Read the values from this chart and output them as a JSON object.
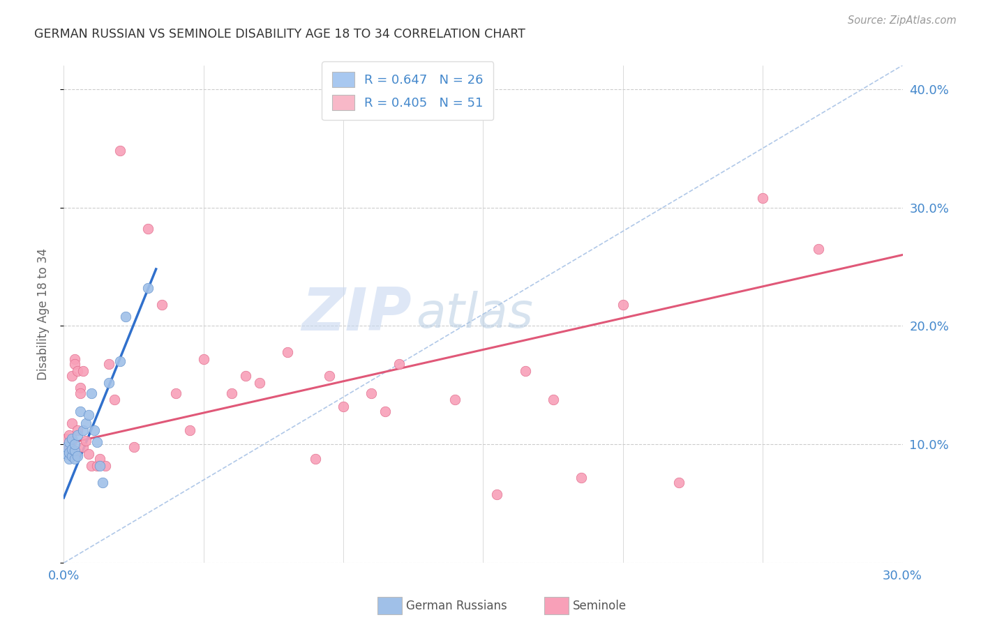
{
  "title": "GERMAN RUSSIAN VS SEMINOLE DISABILITY AGE 18 TO 34 CORRELATION CHART",
  "source": "Source: ZipAtlas.com",
  "ylabel_text": "Disability Age 18 to 34",
  "xlim": [
    0.0,
    0.3
  ],
  "ylim": [
    0.0,
    0.42
  ],
  "xticks": [
    0.0,
    0.05,
    0.1,
    0.15,
    0.2,
    0.25,
    0.3
  ],
  "yticks": [
    0.0,
    0.1,
    0.2,
    0.3,
    0.4
  ],
  "watermark_zip": "ZIP",
  "watermark_atlas": "atlas",
  "legend_entries": [
    {
      "label_r": "R = 0.647",
      "label_n": "N = 26",
      "color": "#a8c8f0"
    },
    {
      "label_r": "R = 0.405",
      "label_n": "N = 51",
      "color": "#f8b8c8"
    }
  ],
  "german_russians": {
    "x": [
      0.001,
      0.001,
      0.002,
      0.002,
      0.002,
      0.003,
      0.003,
      0.003,
      0.004,
      0.004,
      0.004,
      0.005,
      0.005,
      0.006,
      0.007,
      0.008,
      0.009,
      0.01,
      0.011,
      0.012,
      0.013,
      0.014,
      0.016,
      0.02,
      0.022,
      0.03
    ],
    "y": [
      0.092,
      0.098,
      0.088,
      0.093,
      0.102,
      0.09,
      0.096,
      0.105,
      0.088,
      0.095,
      0.1,
      0.09,
      0.108,
      0.128,
      0.112,
      0.118,
      0.125,
      0.143,
      0.112,
      0.102,
      0.082,
      0.068,
      0.152,
      0.17,
      0.208,
      0.232
    ],
    "color": "#a0c0e8",
    "edge_color": "#6090cc",
    "trend_x": [
      0.0,
      0.033
    ],
    "trend_y": [
      0.055,
      0.248
    ],
    "trend_color": "#3070cc"
  },
  "seminoles": {
    "x": [
      0.001,
      0.001,
      0.002,
      0.002,
      0.002,
      0.003,
      0.003,
      0.003,
      0.004,
      0.004,
      0.004,
      0.005,
      0.005,
      0.006,
      0.006,
      0.007,
      0.007,
      0.008,
      0.009,
      0.01,
      0.012,
      0.013,
      0.015,
      0.016,
      0.018,
      0.02,
      0.025,
      0.03,
      0.035,
      0.04,
      0.045,
      0.05,
      0.06,
      0.065,
      0.07,
      0.08,
      0.09,
      0.095,
      0.1,
      0.11,
      0.115,
      0.12,
      0.14,
      0.155,
      0.165,
      0.175,
      0.185,
      0.2,
      0.22,
      0.25,
      0.27
    ],
    "y": [
      0.098,
      0.105,
      0.093,
      0.108,
      0.097,
      0.118,
      0.103,
      0.158,
      0.092,
      0.172,
      0.168,
      0.112,
      0.162,
      0.148,
      0.143,
      0.162,
      0.098,
      0.103,
      0.092,
      0.082,
      0.082,
      0.088,
      0.082,
      0.168,
      0.138,
      0.348,
      0.098,
      0.282,
      0.218,
      0.143,
      0.112,
      0.172,
      0.143,
      0.158,
      0.152,
      0.178,
      0.088,
      0.158,
      0.132,
      0.143,
      0.128,
      0.168,
      0.138,
      0.058,
      0.162,
      0.138,
      0.072,
      0.218,
      0.068,
      0.308,
      0.265
    ],
    "color": "#f8a0b8",
    "edge_color": "#e06888",
    "trend_x": [
      0.0,
      0.3
    ],
    "trend_y": [
      0.1,
      0.26
    ],
    "trend_color": "#e05878"
  },
  "ref_line_x": [
    0.0,
    0.3
  ],
  "ref_line_y": [
    0.0,
    0.42
  ],
  "bg_color": "#ffffff",
  "grid_color": "#cccccc",
  "title_color": "#333333",
  "axis_color": "#4488cc",
  "marker_size": 110
}
